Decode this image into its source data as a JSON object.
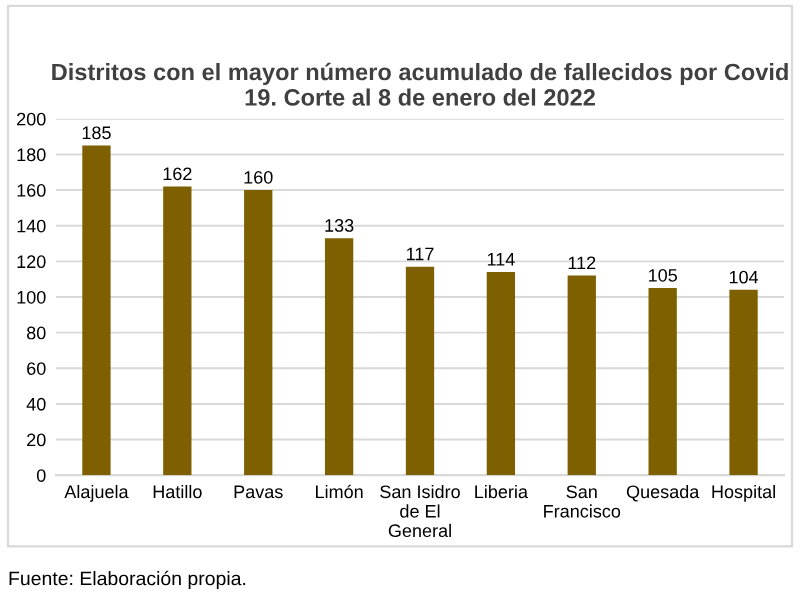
{
  "chart_data": {
    "type": "bar",
    "title": "Distritos con el mayor número acumulado de fallecidos por Covid 19. Corte al 8 de enero del 2022",
    "categories": [
      "Alajuela",
      "Hatillo",
      "Pavas",
      "Limón",
      "San Isidro de El General",
      "Liberia",
      "San Francisco",
      "Quesada",
      "Hospital"
    ],
    "values": [
      185,
      162,
      160,
      133,
      117,
      114,
      112,
      105,
      104
    ],
    "color": "#7f6000",
    "ylim": [
      0,
      200
    ],
    "yticks": [
      0,
      20,
      40,
      60,
      80,
      100,
      120,
      140,
      160,
      180,
      200
    ],
    "grid": "y",
    "data_labels": true,
    "annotations": [
      "Fuente: Elaboración propia."
    ]
  }
}
